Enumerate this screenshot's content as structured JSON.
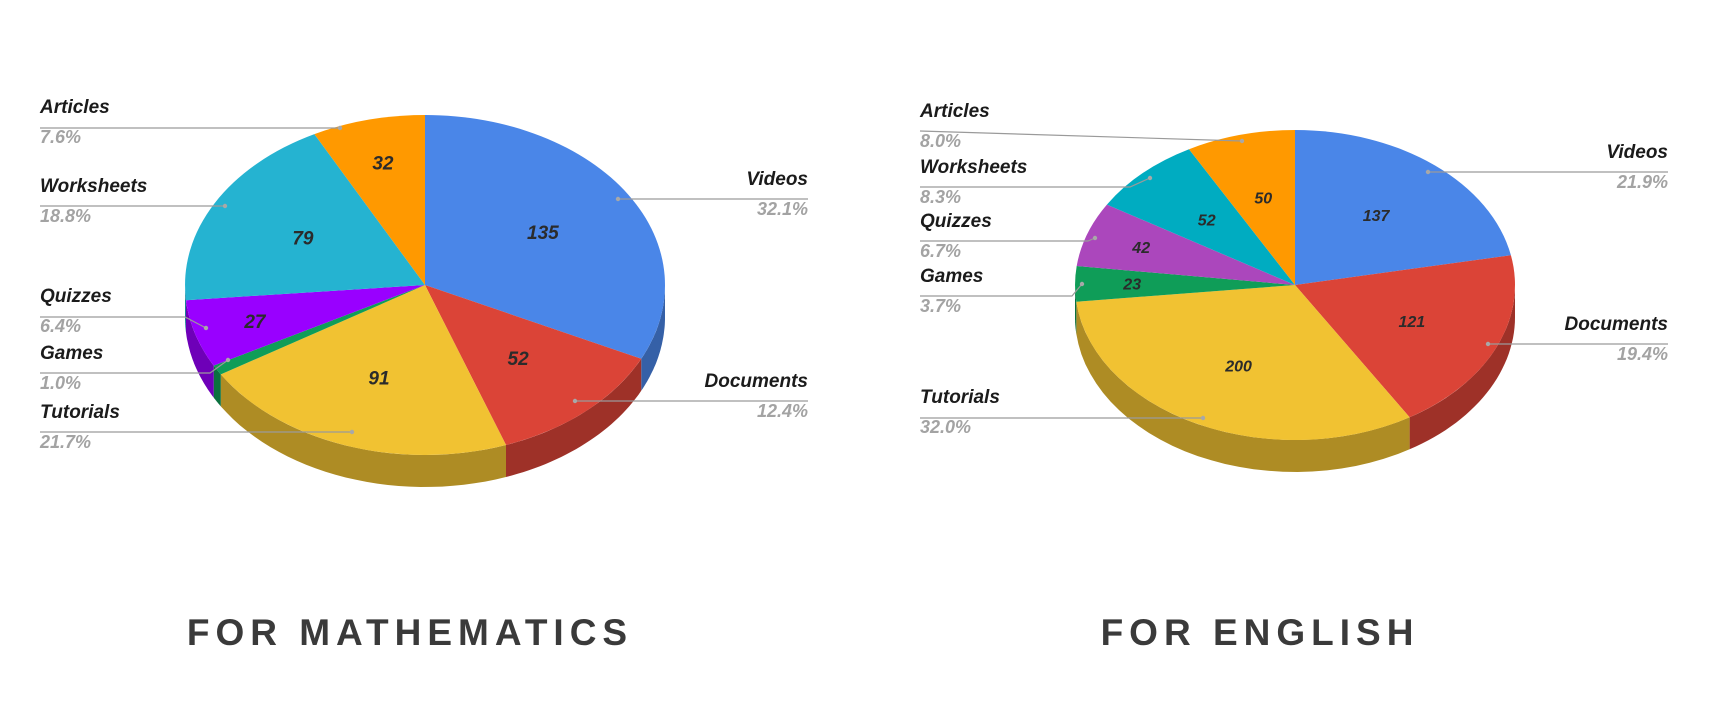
{
  "chart_data": [
    {
      "type": "pie",
      "title": "FOR MATHEMATICS",
      "slices": [
        {
          "label": "Videos",
          "value": 135,
          "percent": "32.1%",
          "color": "#4a86e8"
        },
        {
          "label": "Documents",
          "value": 52,
          "percent": "12.4%",
          "color": "#db4437"
        },
        {
          "label": "Tutorials",
          "value": 91,
          "percent": "21.7%",
          "color": "#f1c232"
        },
        {
          "label": "Games",
          "value": 4,
          "percent": "1.0%",
          "color": "#0f9d58"
        },
        {
          "label": "Quizzes",
          "value": 27,
          "percent": "6.4%",
          "color": "#9900ff"
        },
        {
          "label": "Worksheets",
          "value": 79,
          "percent": "18.8%",
          "color": "#25b3d1"
        },
        {
          "label": "Articles",
          "value": 32,
          "percent": "7.6%",
          "color": "#ff9900"
        }
      ]
    },
    {
      "type": "pie",
      "title": "FOR ENGLISH",
      "slices": [
        {
          "label": "Videos",
          "value": 137,
          "percent": "21.9%",
          "color": "#4a86e8"
        },
        {
          "label": "Documents",
          "value": 121,
          "percent": "19.4%",
          "color": "#db4437"
        },
        {
          "label": "Tutorials",
          "value": 200,
          "percent": "32.0%",
          "color": "#f1c232"
        },
        {
          "label": "Games",
          "value": 23,
          "percent": "3.7%",
          "color": "#0f9d58"
        },
        {
          "label": "Quizzes",
          "value": 42,
          "percent": "6.7%",
          "color": "#ab47bc"
        },
        {
          "label": "Worksheets",
          "value": 52,
          "percent": "8.3%",
          "color": "#00acc1"
        },
        {
          "label": "Articles",
          "value": 50,
          "percent": "8.0%",
          "color": "#ff9900"
        }
      ]
    }
  ]
}
